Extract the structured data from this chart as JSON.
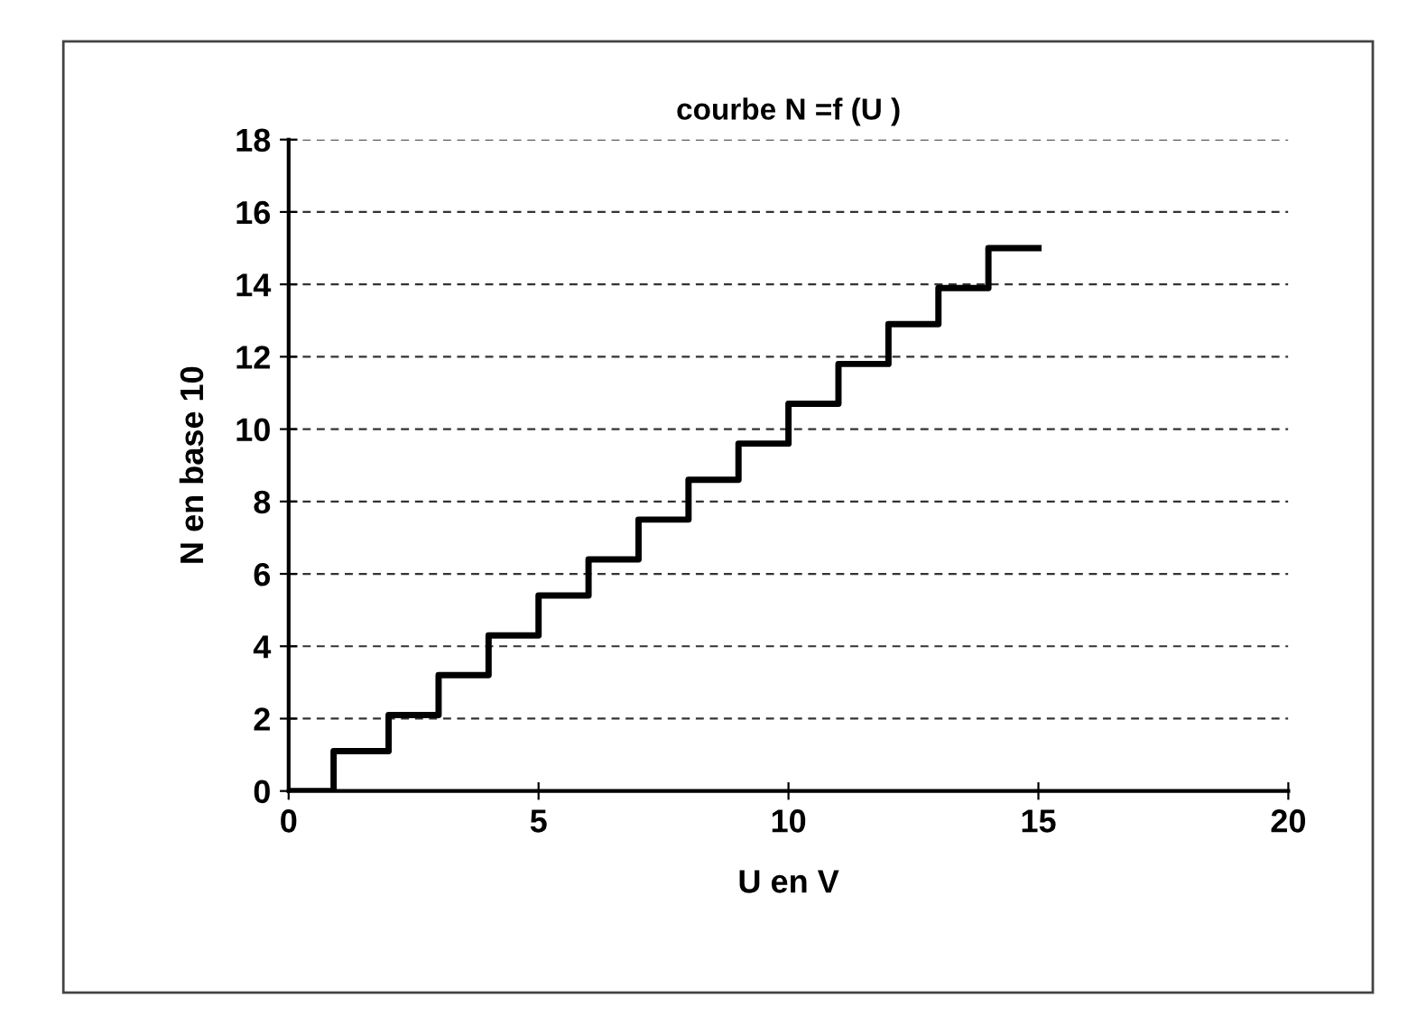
{
  "chart_data": {
    "type": "step",
    "title": "courbe N =f (U )",
    "xlabel": "U en V",
    "ylabel": "N en base 10",
    "x": [
      0,
      0.9,
      2,
      3,
      4,
      5,
      6,
      7,
      8,
      9,
      10,
      11,
      12,
      13,
      14,
      15
    ],
    "series": [
      {
        "color": "#000000",
        "values": [
          0,
          1.1,
          2.1,
          3.2,
          4.3,
          5.4,
          6.4,
          7.5,
          8.6,
          9.6,
          10.7,
          11.8,
          12.9,
          13.9,
          15,
          15
        ]
      }
    ],
    "xlim": [
      0,
      20
    ],
    "xticks": [
      0,
      5,
      10,
      15,
      20
    ],
    "ylim": [
      0,
      18
    ],
    "yticks": [
      0,
      2,
      4,
      6,
      8,
      10,
      12,
      14,
      16,
      18
    ],
    "grid": "y",
    "legend": false,
    "marker": "none",
    "line_style": "solid"
  }
}
